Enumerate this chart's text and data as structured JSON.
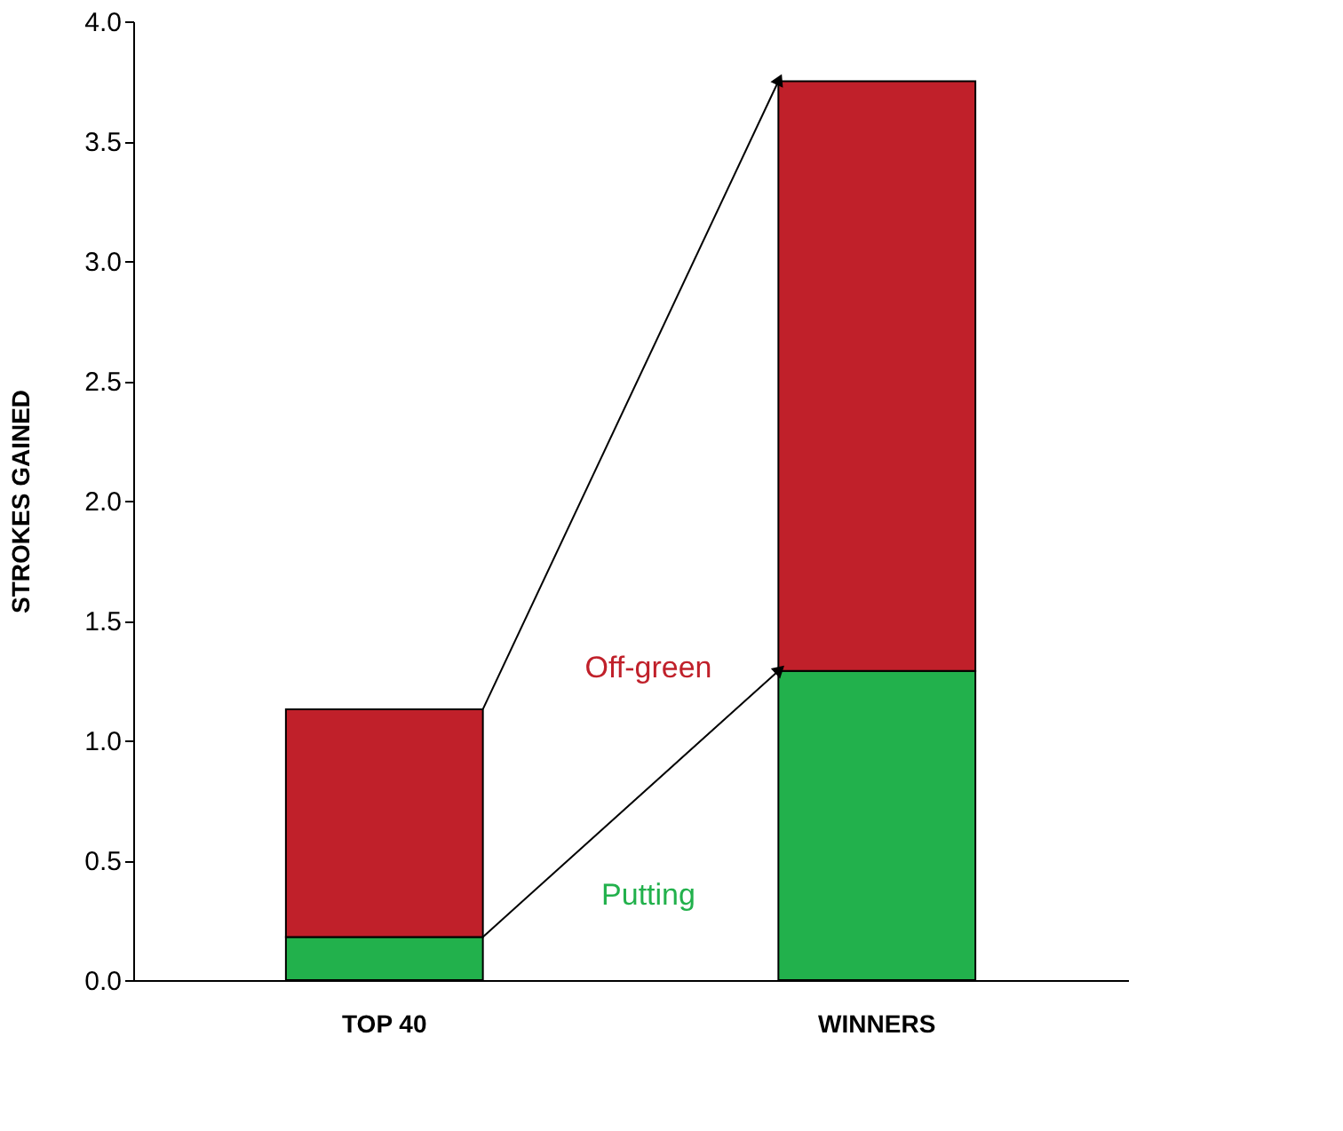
{
  "chart_data": {
    "type": "bar",
    "stacked": true,
    "ylabel": "STROKES GAINED",
    "categories": [
      "TOP 40",
      "WINNERS"
    ],
    "series": [
      {
        "name": "Putting",
        "color": "#22b14c",
        "values": [
          0.18,
          1.29
        ]
      },
      {
        "name": "Off-green",
        "color": "#c0202a",
        "values": [
          0.95,
          2.46
        ]
      }
    ],
    "ylim": [
      0,
      4.0
    ],
    "yticks": [
      {
        "value": 0,
        "label": "0.0"
      },
      {
        "value": 0.5,
        "label": "0.5"
      },
      {
        "value": 1,
        "label": "1.0"
      },
      {
        "value": 1.5,
        "label": "1.5"
      },
      {
        "value": 2,
        "label": "2.0"
      },
      {
        "value": 2.5,
        "label": "2.5"
      },
      {
        "value": 3,
        "label": "3.0"
      },
      {
        "value": 3.5,
        "label": "3.5"
      },
      {
        "value": 4,
        "label": "4.0"
      }
    ],
    "grid": false,
    "legend": false
  }
}
